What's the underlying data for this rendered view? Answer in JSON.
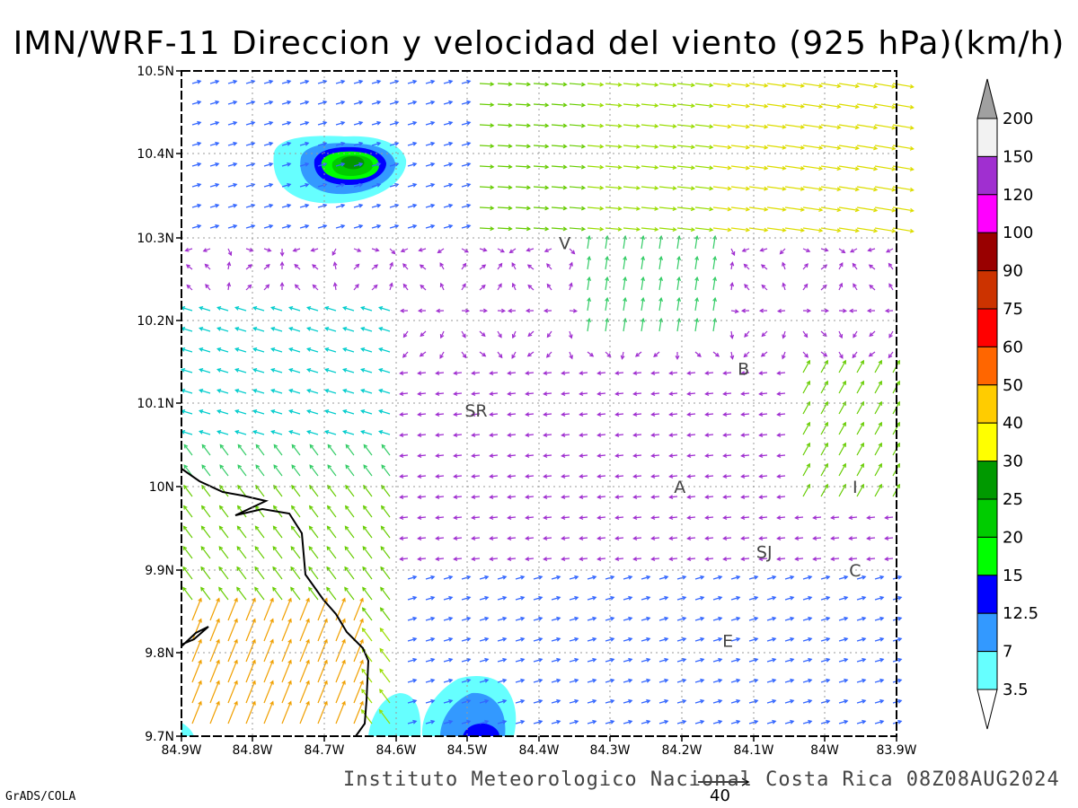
{
  "title": "IMN/WRF-11 Direccion y velocidad del viento (925 hPa)(km/h)",
  "footer": "Instituto Meteorologico Nacional Costa Rica 08Z08AUG2024",
  "credit": "GrADS/COLA",
  "reference_vector_value": "40",
  "lat_labels": [
    "10.5N",
    "10.4N",
    "10.3N",
    "10.2N",
    "10.1N",
    "10N",
    "9.9N",
    "9.8N",
    "9.7N"
  ],
  "lon_labels": [
    "84.9W",
    "84.8W",
    "84.7W",
    "84.6W",
    "84.5W",
    "84.4W",
    "84.3W",
    "84.2W",
    "84.1W",
    "84W",
    "83.9W"
  ],
  "city_labels": [
    {
      "text": "V",
      "lon": -84.364,
      "lat": 10.293
    },
    {
      "text": "B",
      "lon": -84.114,
      "lat": 10.142
    },
    {
      "text": "SR",
      "lon": -84.488,
      "lat": 10.092
    },
    {
      "text": "A",
      "lon": -84.203,
      "lat": 10.0
    },
    {
      "text": "I",
      "lon": -83.958,
      "lat": 10.0
    },
    {
      "text": "SJ",
      "lon": -84.085,
      "lat": 9.922
    },
    {
      "text": "C",
      "lon": -83.958,
      "lat": 9.9
    },
    {
      "text": "E",
      "lon": -84.136,
      "lat": 9.815
    }
  ],
  "colorbar": {
    "labels": [
      "200",
      "150",
      "120",
      "100",
      "90",
      "75",
      "60",
      "50",
      "40",
      "30",
      "25",
      "20",
      "15",
      "12.5",
      "7",
      "3.5"
    ],
    "colors": [
      "#f2f2f2",
      "#a02fd0",
      "#ff00ff",
      "#990000",
      "#cc3300",
      "#ff0000",
      "#ff6600",
      "#ffcc00",
      "#ffff00",
      "#009900",
      "#00cc00",
      "#00ff00",
      "#0000ff",
      "#3399ff",
      "#66ffff"
    ],
    "top_triangle_color": "#a0a0a0",
    "bottom_triangle_color": "#ffffff"
  },
  "contour_colors": {
    "c3_5": "#66ffff",
    "c7": "#3399ff",
    "c12_5": "#0000ff",
    "c15": "#00ff00",
    "c20": "#00cc00",
    "c25": "#009900"
  }
}
